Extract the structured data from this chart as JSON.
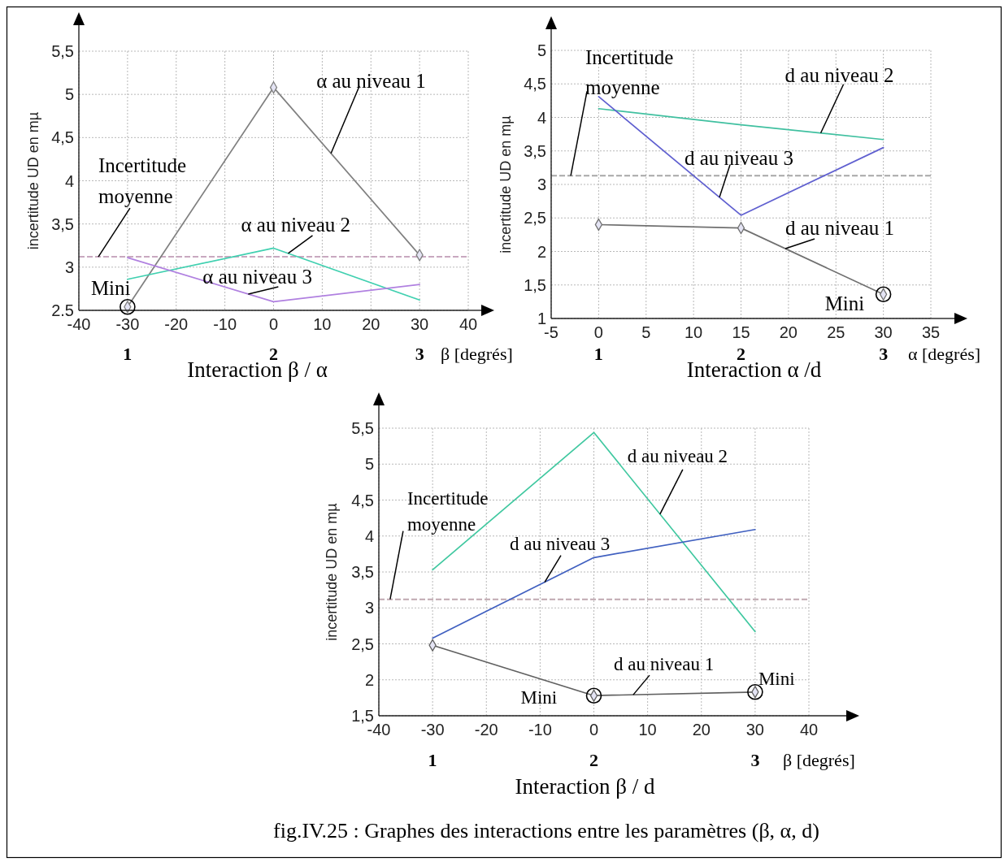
{
  "chart_data": [
    {
      "type": "line",
      "title": "Interaction β / α",
      "xlabel": "β [degrés]",
      "ylabel": "incertitude UD en mµ",
      "x": [
        -30,
        0,
        30
      ],
      "series": [
        {
          "name": "α au niveau 1",
          "color": "#808080",
          "values": [
            2.54,
            5.08,
            3.14
          ],
          "marker": "diamond"
        },
        {
          "name": "α au niveau 2",
          "color": "#40d0b0",
          "values": [
            2.86,
            3.22,
            2.62
          ]
        },
        {
          "name": "α au niveau 3",
          "color": "#b080e0",
          "values": [
            3.11,
            2.6,
            2.8
          ]
        }
      ],
      "xlim": [
        -40,
        40
      ],
      "xticks": [
        -40,
        -30,
        -20,
        -10,
        0,
        10,
        20,
        30,
        40
      ],
      "ylim": [
        2.5,
        5.5
      ],
      "yticks": [
        2.5,
        3,
        {
          "value": 3.5,
          "label": "3,5"
        },
        4,
        {
          "value": 4.5,
          "label": "4,5"
        },
        5,
        {
          "value": 5.5,
          "label": "5,5"
        }
      ],
      "x2lim": [
        0.667,
        3.333
      ],
      "x2ticks": [
        1,
        2,
        3
      ],
      "ref_lines": [
        {
          "axis": "y",
          "value": 3.12,
          "label": "Incertitude moyenne",
          "color": "#c8a8c0",
          "line_style": "dashed"
        }
      ],
      "annotations": [
        {
          "text": "Mini",
          "x": -30,
          "y": 2.54
        }
      ],
      "grid": true
    },
    {
      "type": "line",
      "title": "Interaction α /d",
      "xlabel": "α [degrés]",
      "ylabel": "incertitude UD en mµ",
      "x": [
        0,
        15,
        30
      ],
      "series": [
        {
          "name": "d au niveau 1",
          "color": "#707070",
          "values": [
            2.4,
            2.35,
            1.36
          ],
          "marker": "diamond"
        },
        {
          "name": "d au niveau 2",
          "color": "#40c0a0",
          "values": [
            4.13,
            3.89,
            3.67
          ]
        },
        {
          "name": "d au niveau 3",
          "color": "#6060d0",
          "values": [
            4.31,
            2.54,
            3.55
          ]
        }
      ],
      "xlim": [
        -5,
        35
      ],
      "xticks": [
        -5,
        0,
        5,
        10,
        15,
        20,
        25,
        30,
        35
      ],
      "ylim": [
        1,
        5
      ],
      "yticks": [
        1,
        {
          "value": 1.5,
          "label": "1,5"
        },
        2,
        {
          "value": 2.5,
          "label": "2,5"
        },
        3,
        {
          "value": 3.5,
          "label": "3,5"
        },
        4,
        {
          "value": 4.5,
          "label": "4,5"
        },
        5
      ],
      "x2lim": [
        0.667,
        3.333
      ],
      "x2ticks": [
        1,
        2,
        3
      ],
      "ref_lines": [
        {
          "axis": "y",
          "value": 3.13,
          "label": "Incertitude moyenne",
          "color": "#a8a8a8",
          "line_style": "dashed"
        }
      ],
      "annotations": [
        {
          "text": "Mini",
          "x": 30,
          "y": 1.36
        }
      ],
      "grid": true
    },
    {
      "type": "line",
      "title": "Interaction β / d",
      "xlabel": "β [degrés]",
      "ylabel": "incertitude UD en mµ",
      "x": [
        -30,
        0,
        30
      ],
      "series": [
        {
          "name": "d au niveau 1",
          "color": "#606060",
          "values": [
            2.48,
            1.78,
            1.83
          ],
          "marker": "diamond"
        },
        {
          "name": "d au niveau 2",
          "color": "#40c8a0",
          "values": [
            3.53,
            5.44,
            2.67
          ]
        },
        {
          "name": "d au niveau 3",
          "color": "#4060c0",
          "values": [
            2.58,
            3.7,
            4.09
          ]
        }
      ],
      "xlim": [
        -40,
        40
      ],
      "xticks": [
        -40,
        -30,
        -20,
        -10,
        0,
        10,
        20,
        30,
        40
      ],
      "ylim": [
        1.5,
        5.5
      ],
      "yticks": [
        {
          "value": 1.5,
          "label": "1,5"
        },
        2,
        {
          "value": 2.5,
          "label": "2,5"
        },
        3,
        {
          "value": 3.5,
          "label": "3,5"
        },
        4,
        {
          "value": 4.5,
          "label": "4,5"
        },
        5,
        {
          "value": 5.5,
          "label": "5,5"
        }
      ],
      "x2lim": [
        0.667,
        3.333
      ],
      "x2ticks": [
        1,
        2,
        3
      ],
      "ref_lines": [
        {
          "axis": "y",
          "value": 3.12,
          "label": "Incertitude moyenne",
          "color": "#c0a8b0",
          "line_style": "dashed"
        }
      ],
      "annotations": [
        {
          "text": "Mini",
          "x": 0,
          "y": 1.78
        },
        {
          "text": "Mini",
          "x": 30,
          "y": 1.83
        },
        "fig.IV.25 : Graphes des interactions entre les paramètres (β, α, d)"
      ],
      "grid": true
    }
  ]
}
